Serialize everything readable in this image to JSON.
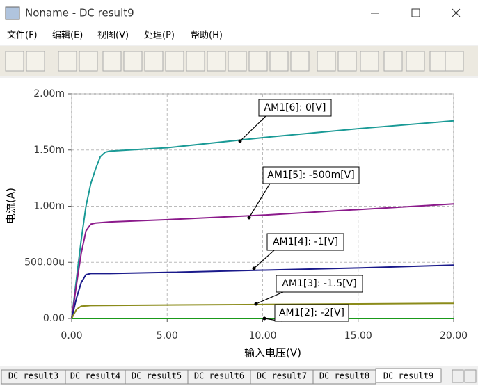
{
  "window": {
    "title": "Noname - DC result9",
    "menu": [
      "文件(F)",
      "编辑(E)",
      "视图(V)",
      "处理(P)",
      "帮助(H)"
    ],
    "tabs": [
      "DC result3",
      "DC result4",
      "DC result5",
      "DC result6",
      "DC result7",
      "DC result8",
      "DC result9"
    ]
  },
  "chart_data": {
    "type": "line",
    "y_label": "电流(A)",
    "x_label": "输入电压(V)",
    "xlim": [
      0,
      20
    ],
    "xticks": [
      {
        "value": 0,
        "label": "0.00"
      },
      {
        "value": 5,
        "label": "5.00"
      },
      {
        "value": 10,
        "label": "10.00"
      },
      {
        "value": 15,
        "label": "15.00"
      },
      {
        "value": 20,
        "label": "20.00"
      }
    ],
    "ylim": [
      0,
      0.002
    ],
    "yticks": [
      {
        "value": 0,
        "label": "0.00"
      },
      {
        "value": 0.0005,
        "label": "500.00u"
      },
      {
        "value": 0.001,
        "label": "1.00m"
      },
      {
        "value": 0.0015,
        "label": "1.50m"
      },
      {
        "value": 0.002,
        "label": "2.00m"
      }
    ],
    "grid": true,
    "series": [
      {
        "name": "AM1[6]: 0[V]",
        "color": "#1a9a96",
        "x": [
          0,
          0.25,
          0.5,
          0.75,
          1,
          1.25,
          1.5,
          1.75,
          2,
          5,
          10,
          15,
          20
        ],
        "values": [
          0,
          0.00035,
          0.0007,
          0.001,
          0.0012,
          0.00133,
          0.00144,
          0.00148,
          0.00149,
          0.00152,
          0.00161,
          0.00169,
          0.00176
        ]
      },
      {
        "name": "AM1[5]: -500m[V]",
        "color": "#8b1a8b",
        "x": [
          0,
          0.25,
          0.5,
          0.75,
          1,
          1.25,
          2,
          5,
          10,
          15,
          20
        ],
        "values": [
          0,
          0.0003,
          0.00058,
          0.00078,
          0.00084,
          0.00085,
          0.00086,
          0.00088,
          0.00092,
          0.00097,
          0.00102
        ]
      },
      {
        "name": "AM1[4]: -1[V]",
        "color": "#1a1a8b",
        "x": [
          0,
          0.25,
          0.5,
          0.75,
          1,
          2,
          5,
          10,
          15,
          20
        ],
        "values": [
          0,
          0.00018,
          0.00032,
          0.00039,
          0.0004,
          0.0004,
          0.00041,
          0.00043,
          0.00045,
          0.000475
        ]
      },
      {
        "name": "AM1[3]: -1.5[V]",
        "color": "#8b8b1a",
        "x": [
          0,
          0.25,
          0.5,
          1,
          5,
          10,
          15,
          20
        ],
        "values": [
          0,
          8e-05,
          0.00011,
          0.000115,
          0.00012,
          0.000125,
          0.00013,
          0.000135
        ]
      },
      {
        "name": "AM1[2]: -2[V]",
        "color": "#1a9a1a",
        "x": [
          0,
          20
        ],
        "values": [
          0,
          0
        ]
      }
    ]
  }
}
